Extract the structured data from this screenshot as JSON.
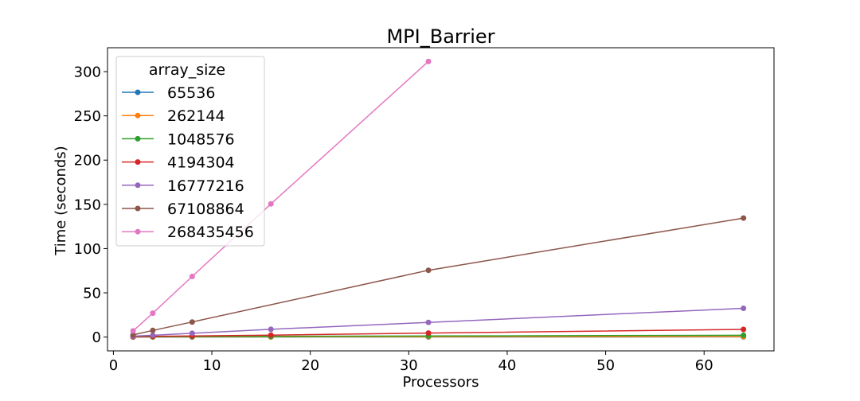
{
  "chart_data": {
    "type": "line",
    "title": "MPI_Barrier",
    "xlabel": "Processors",
    "ylabel": "Time (seconds)",
    "xlim": [
      -0.6,
      67.1
    ],
    "ylim": [
      -15.6,
      327.0
    ],
    "xticks": [
      0,
      10,
      20,
      30,
      40,
      50,
      60
    ],
    "yticks": [
      0,
      50,
      100,
      150,
      200,
      250,
      300
    ],
    "grid": false,
    "legend": {
      "title": "array_size",
      "position": "top-left"
    },
    "series": [
      {
        "name": "65536",
        "color": "#1f77b4",
        "points": [
          [
            2,
            0.1
          ],
          [
            4,
            0.1
          ],
          [
            8,
            0.1
          ],
          [
            16,
            0.1
          ],
          [
            32,
            0.1
          ],
          [
            64,
            0.2
          ]
        ]
      },
      {
        "name": "262144",
        "color": "#ff7f0e",
        "points": [
          [
            2,
            0.1
          ],
          [
            4,
            0.2
          ],
          [
            8,
            0.2
          ],
          [
            16,
            0.3
          ],
          [
            32,
            0.4
          ],
          [
            64,
            0.6
          ]
        ]
      },
      {
        "name": "1048576",
        "color": "#2ca02c",
        "points": [
          [
            2,
            0.2
          ],
          [
            4,
            0.4
          ],
          [
            8,
            0.6
          ],
          [
            16,
            0.9
          ],
          [
            32,
            1.2
          ],
          [
            64,
            2.0
          ]
        ]
      },
      {
        "name": "4194304",
        "color": "#d62728",
        "points": [
          [
            2,
            0.5
          ],
          [
            4,
            0.8
          ],
          [
            8,
            1.2
          ],
          [
            16,
            2.2
          ],
          [
            32,
            4.5
          ],
          [
            64,
            8.7
          ]
        ]
      },
      {
        "name": "16777216",
        "color": "#9467bd",
        "points": [
          [
            2,
            1.0
          ],
          [
            4,
            2.0
          ],
          [
            8,
            4.3
          ],
          [
            16,
            8.8
          ],
          [
            32,
            16.6
          ],
          [
            64,
            32.5
          ]
        ]
      },
      {
        "name": "67108864",
        "color": "#8c564b",
        "points": [
          [
            2,
            2.5
          ],
          [
            4,
            7.5
          ],
          [
            8,
            17.0
          ],
          [
            32,
            75.5
          ],
          [
            64,
            134.5
          ]
        ]
      },
      {
        "name": "268435456",
        "color": "#e377c2",
        "points": [
          [
            2,
            7.0
          ],
          [
            4,
            27.0
          ],
          [
            8,
            68.5
          ],
          [
            16,
            150.5
          ],
          [
            32,
            311.5
          ]
        ]
      }
    ]
  }
}
